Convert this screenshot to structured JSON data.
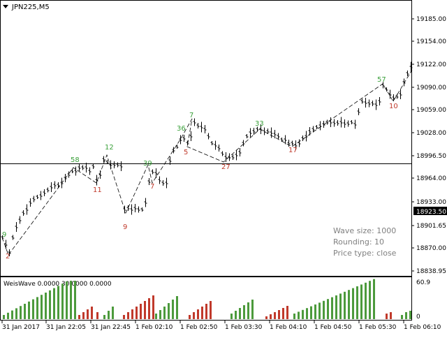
{
  "window": {
    "symbol_label": "JPN225,M5"
  },
  "price_axis": {
    "labels": [
      "19185.00",
      "19154.00",
      "19122.00",
      "19090.00",
      "19059.00",
      "19028.00",
      "18996.50",
      "18964.00",
      "18933.00",
      "18901.65",
      "18870.00",
      "18838.95"
    ],
    "current_price": "18923.50"
  },
  "time_axis": {
    "labels": [
      "31 Jan 2017",
      "31 Jan 22:05",
      "31 Jan 22:45",
      "1 Feb 02:10",
      "1 Feb 02:50",
      "1 Feb 03:30",
      "1 Feb 04:10",
      "1 Feb 04:50",
      "1 Feb 05:30",
      "1 Feb 06:10"
    ]
  },
  "info_box": {
    "wave_size": "Wave size: 1000",
    "rounding": "Rounding: 10",
    "price_type": "Price type: close"
  },
  "wave_labels": [
    {
      "text": "9",
      "color": "green"
    },
    {
      "text": "2",
      "color": "red"
    },
    {
      "text": "58",
      "color": "green"
    },
    {
      "text": "11",
      "color": "red"
    },
    {
      "text": "12",
      "color": "green"
    },
    {
      "text": "9",
      "color": "red"
    },
    {
      "text": "39",
      "color": "green"
    },
    {
      "text": "7",
      "color": "red"
    },
    {
      "text": "36",
      "color": "green"
    },
    {
      "text": "7",
      "color": "green"
    },
    {
      "text": "5",
      "color": "red"
    },
    {
      "text": "27",
      "color": "red"
    },
    {
      "text": "33",
      "color": "green"
    },
    {
      "text": "17",
      "color": "red"
    },
    {
      "text": "57",
      "color": "green"
    },
    {
      "text": "10",
      "color": "red"
    }
  ],
  "indicator": {
    "title": "WeisWave 0.0000 30.0000 0.0000",
    "scale_max": "60.9",
    "scale_min": "0"
  },
  "colors": {
    "up": "#4c9a3c",
    "down": "#c0392b",
    "up_label": "#3aa03a",
    "down_label": "#c0392b",
    "axis_text": "#000000",
    "grid_border": "#000000",
    "current_price_bg": "#000000",
    "current_price_fg": "#ffffff",
    "info_text": "#808080"
  }
}
